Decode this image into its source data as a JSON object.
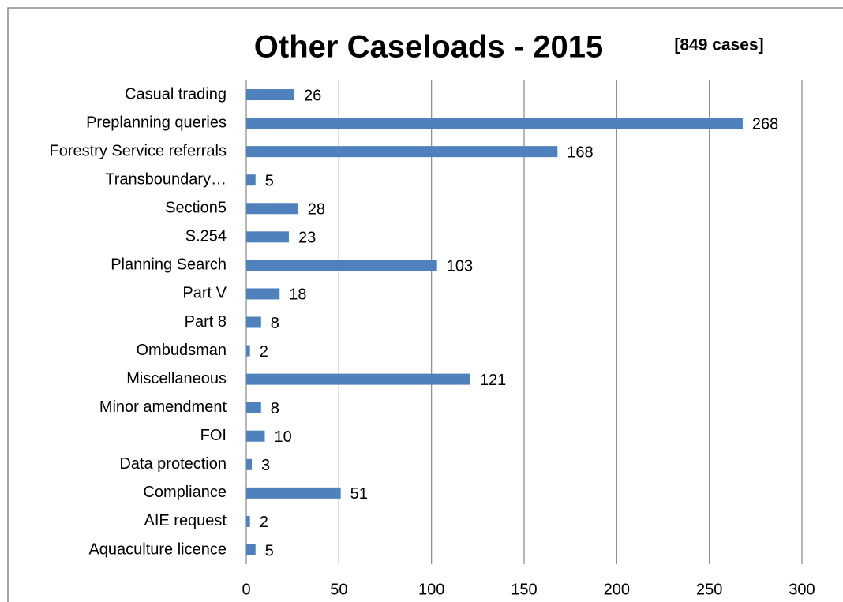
{
  "chart_data": {
    "type": "bar",
    "orientation": "horizontal",
    "title": "Other Caseloads - 2015",
    "subtitle": "[849 cases]",
    "categories": [
      "Casual trading",
      "Preplanning queries",
      "Forestry Service referrals",
      "Transboundary…",
      "Section5",
      "S.254",
      "Planning Search",
      "Part V",
      "Part 8",
      "Ombudsman",
      "Miscellaneous",
      "Minor amendment",
      "FOI",
      "Data protection",
      "Compliance",
      "AIE request",
      "Aquaculture licence"
    ],
    "values": [
      26,
      268,
      168,
      5,
      28,
      23,
      103,
      18,
      8,
      2,
      121,
      8,
      10,
      3,
      51,
      2,
      5
    ],
    "color": "#4f81bd",
    "xlim": [
      0,
      300
    ],
    "xticks": [
      0,
      50,
      100,
      150,
      200,
      250,
      300
    ],
    "grid": true
  }
}
